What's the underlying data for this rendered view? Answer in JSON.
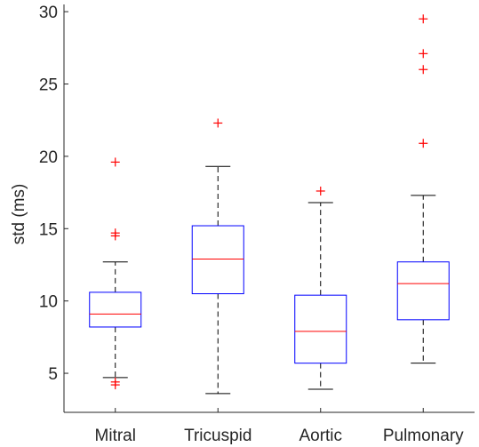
{
  "chart_data": {
    "type": "boxplot",
    "title": "",
    "xlabel": "",
    "ylabel": "std (ms)",
    "ylim": [
      2.3,
      30.5
    ],
    "yticks": [
      5,
      10,
      15,
      20,
      25,
      30
    ],
    "grid": false,
    "legend": "none",
    "categories": [
      "Mitral",
      "Tricuspid",
      "Aortic",
      "Pulmonary"
    ],
    "boxes": [
      {
        "q1": 8.2,
        "median": 9.1,
        "q3": 10.6,
        "whisker_low": 4.7,
        "whisker_high": 12.7,
        "outliers": [
          19.6,
          14.7,
          14.5,
          4.4,
          4.2
        ]
      },
      {
        "q1": 10.5,
        "median": 12.9,
        "q3": 15.2,
        "whisker_low": 3.6,
        "whisker_high": 19.3,
        "outliers": [
          22.3
        ]
      },
      {
        "q1": 5.7,
        "median": 7.9,
        "q3": 10.4,
        "whisker_low": 3.9,
        "whisker_high": 16.8,
        "outliers": [
          17.6
        ]
      },
      {
        "q1": 8.7,
        "median": 11.2,
        "q3": 12.7,
        "whisker_low": 5.7,
        "whisker_high": 17.3,
        "outliers": [
          29.5,
          27.1,
          26.0,
          20.9
        ]
      }
    ],
    "colors": {
      "box": "#0000ff",
      "median": "#ff0000",
      "whisker": "#000000",
      "outlier": "#ff0000",
      "axis": "#262626"
    }
  }
}
